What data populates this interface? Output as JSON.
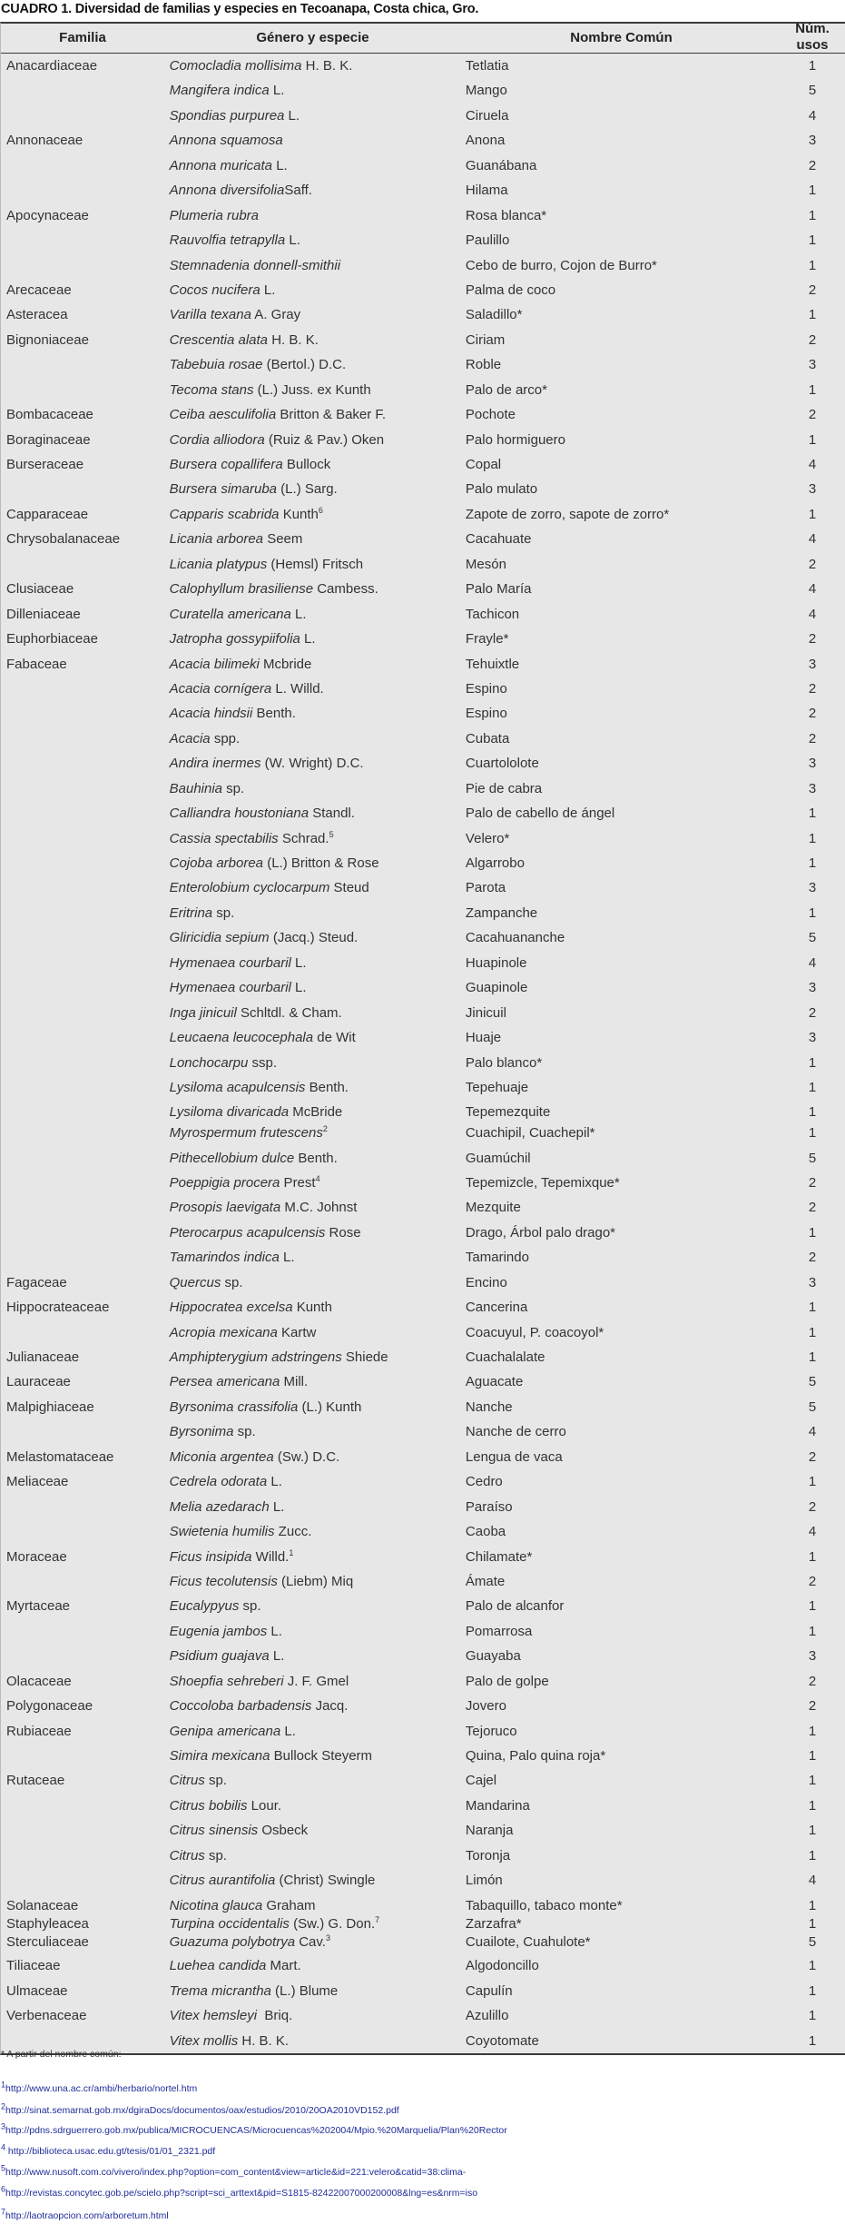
{
  "title": "CUADRO 1. Diversidad de familias y especies en Tecoanapa, Costa chica, Gro.",
  "headers": {
    "familia": "Familia",
    "especie": "Género y especie",
    "nombre": "Nombre Común",
    "usos_1": "Núm.",
    "usos_2": "usos"
  },
  "rows": [
    {
      "familia": "Anacardiaceae",
      "especie": "Comocladia mollisima",
      "autor": " H. B. K.",
      "sup": "",
      "nombre": "Tetlatia",
      "usos": "1"
    },
    {
      "familia": "",
      "especie": "Mangifera indica",
      "autor": " L.",
      "sup": "",
      "nombre": "Mango",
      "usos": "5"
    },
    {
      "familia": "",
      "especie": "Spondias purpurea",
      "autor": " L.",
      "sup": "",
      "nombre": "Ciruela",
      "usos": "4"
    },
    {
      "familia": "Annonaceae",
      "especie": "Annona squamosa",
      "autor": "",
      "sup": "",
      "nombre": "Anona",
      "usos": "3"
    },
    {
      "familia": "",
      "especie": "Annona muricata",
      "autor": " L.",
      "sup": "",
      "nombre": "Guanábana",
      "usos": "2"
    },
    {
      "familia": "",
      "especie": "Annona diversifolia",
      "autor": "Saff.",
      "sup": "",
      "nombre": "Hilama",
      "usos": "1"
    },
    {
      "familia": "Apocynaceae",
      "especie": "Plumeria rubra",
      "autor": "",
      "sup": "",
      "nombre": "Rosa blanca*",
      "usos": "1"
    },
    {
      "familia": "",
      "especie": "Rauvolfia tetrapylla",
      "autor": " L.",
      "sup": "",
      "nombre": "Paulillo",
      "usos": "1"
    },
    {
      "familia": "",
      "especie": "Stemnadenia donnell-smithii",
      "autor": "",
      "sup": "",
      "nombre": "Cebo de burro, Cojon de Burro*",
      "usos": "1"
    },
    {
      "familia": "Arecaceae",
      "especie": "Cocos nucifera",
      "autor": " L.",
      "sup": "",
      "nombre": "Palma de coco",
      "usos": "2"
    },
    {
      "familia": "Asteracea",
      "especie": "Varilla texana",
      "autor": " A. Gray",
      "sup": "",
      "nombre": "Saladillo*",
      "usos": "1"
    },
    {
      "familia": "Bignoniaceae",
      "especie": "Crescentia alata",
      "autor": " H. B. K.",
      "sup": "",
      "nombre": "Ciriam",
      "usos": "2"
    },
    {
      "familia": "",
      "especie": "Tabebuia rosae",
      "autor": " (Bertol.) D.C.",
      "sup": "",
      "nombre": "Roble",
      "usos": "3"
    },
    {
      "familia": "",
      "especie": "Tecoma stans",
      "autor": " (L.) Juss. ex Kunth",
      "sup": "",
      "nombre": "Palo de arco*",
      "usos": "1"
    },
    {
      "familia": "Bombacaceae",
      "especie": "Ceiba aesculifolia",
      "autor": " Britton & Baker F.",
      "sup": "",
      "nombre": "Pochote",
      "usos": "2"
    },
    {
      "familia": "Boraginaceae",
      "especie": "Cordia alliodora",
      "autor": " (Ruiz & Pav.) Oken",
      "sup": "",
      "nombre": "Palo hormiguero",
      "usos": "1"
    },
    {
      "familia": "Burseraceae",
      "especie": "Bursera copallifera",
      "autor": " Bullock",
      "sup": "",
      "nombre": "Copal",
      "usos": "4"
    },
    {
      "familia": "",
      "especie": "Bursera simaruba",
      "autor": " (L.) Sarg.",
      "sup": "",
      "nombre": "Palo mulato",
      "usos": "3"
    },
    {
      "familia": "Capparaceae",
      "especie": "Capparis scabrida",
      "autor": " Kunth",
      "sup": "6",
      "nombre": "Zapote de zorro, sapote de zorro*",
      "usos": "1"
    },
    {
      "familia": "Chrysobalanaceae",
      "especie": "Licania arborea",
      "autor": " Seem",
      "sup": "",
      "nombre": "Cacahuate",
      "usos": "4"
    },
    {
      "familia": "",
      "especie": "Licania platypus",
      "autor": " (Hemsl) Fritsch",
      "sup": "",
      "nombre": "Mesón",
      "usos": "2"
    },
    {
      "familia": "Clusiaceae",
      "especie": "Calophyllum brasiliense",
      "autor": " Cambess.",
      "sup": "",
      "nombre": "Palo María",
      "usos": "4"
    },
    {
      "familia": "Dilleniaceae",
      "especie": "Curatella americana",
      "autor": " L.",
      "sup": "",
      "nombre": "Tachicon",
      "usos": "4"
    },
    {
      "familia": "Euphorbiaceae",
      "especie": "Jatropha gossypiifolia",
      "autor": " L.",
      "sup": "",
      "nombre": "Frayle*",
      "usos": "2"
    },
    {
      "familia": "Fabaceae",
      "especie": "Acacia bilimeki",
      "autor": " Mcbride",
      "sup": "",
      "nombre": "Tehuixtle",
      "usos": "3"
    },
    {
      "familia": "",
      "especie": "Acacia cornígera",
      "autor": " L. Willd.",
      "sup": "",
      "nombre": "Espino",
      "usos": "2"
    },
    {
      "familia": "",
      "especie": "Acacia hindsii",
      "autor": " Benth.",
      "sup": "",
      "nombre": "Espino",
      "usos": "2"
    },
    {
      "familia": "",
      "especie": "Acacia",
      "autor": " spp.",
      "sup": "",
      "nombre": "Cubata",
      "usos": "2"
    },
    {
      "familia": "",
      "especie": "Andira inermes",
      "autor": " (W. Wright) D.C.",
      "sup": "",
      "nombre": "Cuartololote",
      "usos": "3"
    },
    {
      "familia": "",
      "especie": "Bauhinia",
      "autor": " sp.",
      "sup": "",
      "nombre": "Pie de cabra",
      "usos": "3"
    },
    {
      "familia": "",
      "especie": "Calliandra houstoniana",
      "autor": " Standl.",
      "sup": "",
      "nombre": "Palo de cabello de ángel",
      "usos": "1"
    },
    {
      "familia": "",
      "especie": "Cassia spectabilis",
      "autor": " Schrad.",
      "sup": "5",
      "nombre": "Velero*",
      "usos": "1"
    },
    {
      "familia": "",
      "especie": "Cojoba arborea",
      "autor": " (L.) Britton & Rose",
      "sup": "",
      "nombre": "Algarrobo",
      "usos": "1"
    },
    {
      "familia": "",
      "especie": "Enterolobium cyclocarpum",
      "autor": " Steud",
      "sup": "",
      "nombre": "Parota",
      "usos": "3"
    },
    {
      "familia": "",
      "especie": "Eritrina",
      "autor": " sp.",
      "sup": "",
      "nombre": "Zampanche",
      "usos": "1"
    },
    {
      "familia": "",
      "especie": "Gliricidia sepium",
      "autor": " (Jacq.) Steud.",
      "sup": "",
      "nombre": "Cacahuananche",
      "usos": "5"
    },
    {
      "familia": "",
      "especie": "Hymenaea courbaril",
      "autor": " L.",
      "sup": "",
      "nombre": "Huapinole",
      "usos": "4"
    },
    {
      "familia": "",
      "especie": "Hymenaea courbaril",
      "autor": " L.",
      "sup": "",
      "nombre": "Guapinole",
      "usos": "3"
    },
    {
      "familia": "",
      "especie": "Inga jinicuil",
      "autor": " Schltdl. & Cham.",
      "sup": "",
      "nombre": "Jinicuil",
      "usos": "2"
    },
    {
      "familia": "",
      "especie": "Leucaena leucocephala",
      "autor": " de Wit",
      "sup": "",
      "nombre": "Huaje",
      "usos": "3"
    },
    {
      "familia": "",
      "especie": "Lonchocarpu",
      "autor": " ssp.",
      "sup": "",
      "nombre": "Palo blanco*",
      "usos": "1"
    },
    {
      "familia": "",
      "especie": "Lysiloma acapulcensis",
      "autor": " Benth.",
      "sup": "",
      "nombre": "Tepehuaje",
      "usos": "1"
    },
    {
      "familia": "",
      "especie": "Lysiloma divaricada",
      "autor": " McBride",
      "sup": "",
      "nombre": "Tepemezquite",
      "usos": "1"
    },
    {
      "familia": "",
      "especie": "Myrospermum frutescens",
      "autor": "",
      "sup": "2",
      "nombre": "Cuachipil, Cuachepil*",
      "usos": "1"
    },
    {
      "familia": "",
      "especie": "Pithecellobium dulce",
      "autor": " Benth.",
      "sup": "",
      "nombre": "Guamúchil",
      "usos": "5"
    },
    {
      "familia": "",
      "especie": "Poeppigia procera",
      "autor": " Prest",
      "sup": "4",
      "nombre": "Tepemizcle, Tepemixque*",
      "usos": "2"
    },
    {
      "familia": "",
      "especie": "Prosopis laevigata",
      "autor": " M.C. Johnst",
      "sup": "",
      "nombre": "Mezquite",
      "usos": "2"
    },
    {
      "familia": "",
      "especie": "Pterocarpus acapulcensis",
      "autor": " Rose",
      "sup": "",
      "nombre": "Drago, Árbol palo drago*",
      "usos": "1"
    },
    {
      "familia": "",
      "especie": "Tamarindos indica",
      "autor": " L.",
      "sup": "",
      "nombre": "Tamarindo",
      "usos": "2"
    },
    {
      "familia": "Fagaceae",
      "especie": "Quercus",
      "autor": " sp.",
      "sup": "",
      "nombre": "Encino",
      "usos": "3"
    },
    {
      "familia": "Hippocrateaceae",
      "especie": "Hippocratea excelsa",
      "autor": " Kunth",
      "sup": "",
      "nombre": "Cancerina",
      "usos": "1"
    },
    {
      "familia": "",
      "especie": "Acropia mexicana",
      "autor": " Kartw",
      "sup": "",
      "nombre": "Coacuyul, P. coacoyol*",
      "usos": "1"
    },
    {
      "familia": "Julianaceae",
      "especie": "Amphipterygium adstringens",
      "autor": " Shiede",
      "sup": "",
      "nombre": "Cuachalalate",
      "usos": "1"
    },
    {
      "familia": "Lauraceae",
      "especie": "Persea americana",
      "autor": " Mill.",
      "sup": "",
      "nombre": "Aguacate",
      "usos": "5"
    },
    {
      "familia": "Malpighiaceae",
      "especie": "Byrsonima crassifolia",
      "autor": " (L.) Kunth",
      "sup": "",
      "nombre": "Nanche",
      "usos": "5"
    },
    {
      "familia": "",
      "especie": "Byrsonima",
      "autor": " sp.",
      "sup": "",
      "nombre": "Nanche de cerro",
      "usos": "4"
    },
    {
      "familia": "Melastomataceae",
      "especie": "Miconia argentea",
      "autor": " (Sw.) D.C.",
      "sup": "",
      "nombre": "Lengua de vaca",
      "usos": "2"
    },
    {
      "familia": "Meliaceae",
      "especie": "Cedrela odorata",
      "autor": " L.",
      "sup": "",
      "nombre": "Cedro",
      "usos": "1"
    },
    {
      "familia": "",
      "especie": "Melia azedarach",
      "autor": " L.",
      "sup": "",
      "nombre": "Paraíso",
      "usos": "2"
    },
    {
      "familia": "",
      "especie": "Swietenia humilis",
      "autor": " Zucc.",
      "sup": "",
      "nombre": "Caoba",
      "usos": "4"
    },
    {
      "familia": "Moraceae",
      "especie": "Ficus insipida",
      "autor": " Willd.",
      "sup": "1",
      "nombre": "Chilamate*",
      "usos": "1"
    },
    {
      "familia": "",
      "especie": "Ficus tecolutensis",
      "autor": " (Liebm) Miq",
      "sup": "",
      "nombre": "Ámate",
      "usos": "2"
    },
    {
      "familia": "Myrtaceae",
      "especie": "Eucalypyus",
      "autor": " sp.",
      "sup": "",
      "nombre": "Palo de alcanfor",
      "usos": "1"
    },
    {
      "familia": "",
      "especie": "Eugenia jambos",
      "autor": " L.",
      "sup": "",
      "nombre": "Pomarrosa",
      "usos": "1"
    },
    {
      "familia": "",
      "especie": "Psidium guajava",
      "autor": " L.",
      "sup": "",
      "nombre": "Guayaba",
      "usos": "3"
    },
    {
      "familia": "Olacaceae",
      "especie": "Shoepfia sehreberi",
      "autor": " J. F. Gmel",
      "sup": "",
      "nombre": "Palo de golpe",
      "usos": "2"
    },
    {
      "familia": "Polygonaceae",
      "especie": "Coccoloba barbadensis",
      "autor": " Jacq.",
      "sup": "",
      "nombre": "Jovero",
      "usos": "2"
    },
    {
      "familia": "Rubiaceae",
      "especie": "Genipa americana",
      "autor": " L.",
      "sup": "",
      "nombre": "Tejoruco",
      "usos": "1"
    },
    {
      "familia": "",
      "especie": "Simira mexicana",
      "autor": " Bullock Steyerm",
      "sup": "",
      "nombre": "Quina, Palo quina roja*",
      "usos": "1"
    },
    {
      "familia": "Rutaceae",
      "especie": "Citrus",
      "autor": " sp.",
      "sup": "",
      "nombre": "Cajel",
      "usos": "1"
    },
    {
      "familia": "",
      "especie": "Citrus bobilis",
      "autor": " Lour.",
      "sup": "",
      "nombre": "Mandarina",
      "usos": "1"
    },
    {
      "familia": "",
      "especie": "Citrus sinensis",
      "autor": " Osbeck",
      "sup": "",
      "nombre": "Naranja",
      "usos": "1"
    },
    {
      "familia": "",
      "especie": "Citrus",
      "autor": " sp.",
      "sup": "",
      "nombre": "Toronja",
      "usos": "1"
    },
    {
      "familia": "",
      "especie": "Citrus aurantifolia",
      "autor": " (Christ) Swingle",
      "sup": "",
      "nombre": "Limón",
      "usos": "4"
    },
    {
      "familia": "Solanaceae",
      "especie": "Nicotina glauca",
      "autor": " Graham",
      "sup": "",
      "nombre": "Tabaquillo, tabaco monte*",
      "usos": "1"
    },
    {
      "familia": "Staphyleacea",
      "especie": "Turpina occidentalis",
      "autor": " (Sw.) G. Don.",
      "sup": "7",
      "nombre": "Zarzafra*",
      "usos": "1"
    },
    {
      "familia": "Sterculiaceae",
      "especie": "Guazuma polybotrya",
      "autor": " Cav.",
      "sup": "3",
      "nombre": "Cuailote, Cuahulote*",
      "usos": "5"
    },
    {
      "familia": "Tiliaceae",
      "especie": "Luehea candida",
      "autor": " Mart.",
      "sup": "",
      "nombre": "Algodoncillo",
      "usos": "1"
    },
    {
      "familia": "Ulmaceae",
      "especie": "Trema micrantha",
      "autor": " (L.) Blume",
      "sup": "",
      "nombre": "Capulín",
      "usos": "1"
    },
    {
      "familia": "Verbenaceae",
      "especie": "Vitex hemsleyi",
      "autor": "  Briq.",
      "sup": "",
      "nombre": "Azulillo",
      "usos": "1"
    },
    {
      "familia": "",
      "especie": "Vitex mollis",
      "autor": " H. B. K.",
      "sup": "",
      "nombre": "Coyotomate",
      "usos": "1"
    }
  ],
  "footnotes": [
    {
      "mark": "",
      "text": "* A partir del nombre común:"
    },
    {
      "mark": "1",
      "text": "http://www.una.ac.cr/ambi/herbario/nortel.htm"
    },
    {
      "mark": "2",
      "text": "http://sinat.semarnat.gob.mx/dgiraDocs/documentos/oax/estudios/2010/20OA2010VD152.pdf"
    },
    {
      "mark": "3",
      "text": "http://pdns.sdrguerrero.gob.mx/publica/MICROCUENCAS/Microcuencas%202004/Mpio.%20Marquelia/Plan%20Rector"
    },
    {
      "mark": "4",
      "text": " http://biblioteca.usac.edu.gt/tesis/01/01_2321.pdf"
    },
    {
      "mark": "5",
      "text": "http://www.nusoft.com.co/vivero/index.php?option=com_content&view=article&id=221:velero&catid=38:clima-"
    },
    {
      "mark": "6",
      "text": "http://revistas.concytec.gob.pe/scielo.php?script=sci_arttext&pid=S1815-82422007000200008&lng=es&nrm=iso"
    },
    {
      "mark": "7",
      "text": "http://laotraopcion.com/arboretum.html"
    }
  ],
  "colors": {
    "table_bg": "#e7e7e7",
    "link": "#1f2d9a",
    "text": "#333333"
  }
}
